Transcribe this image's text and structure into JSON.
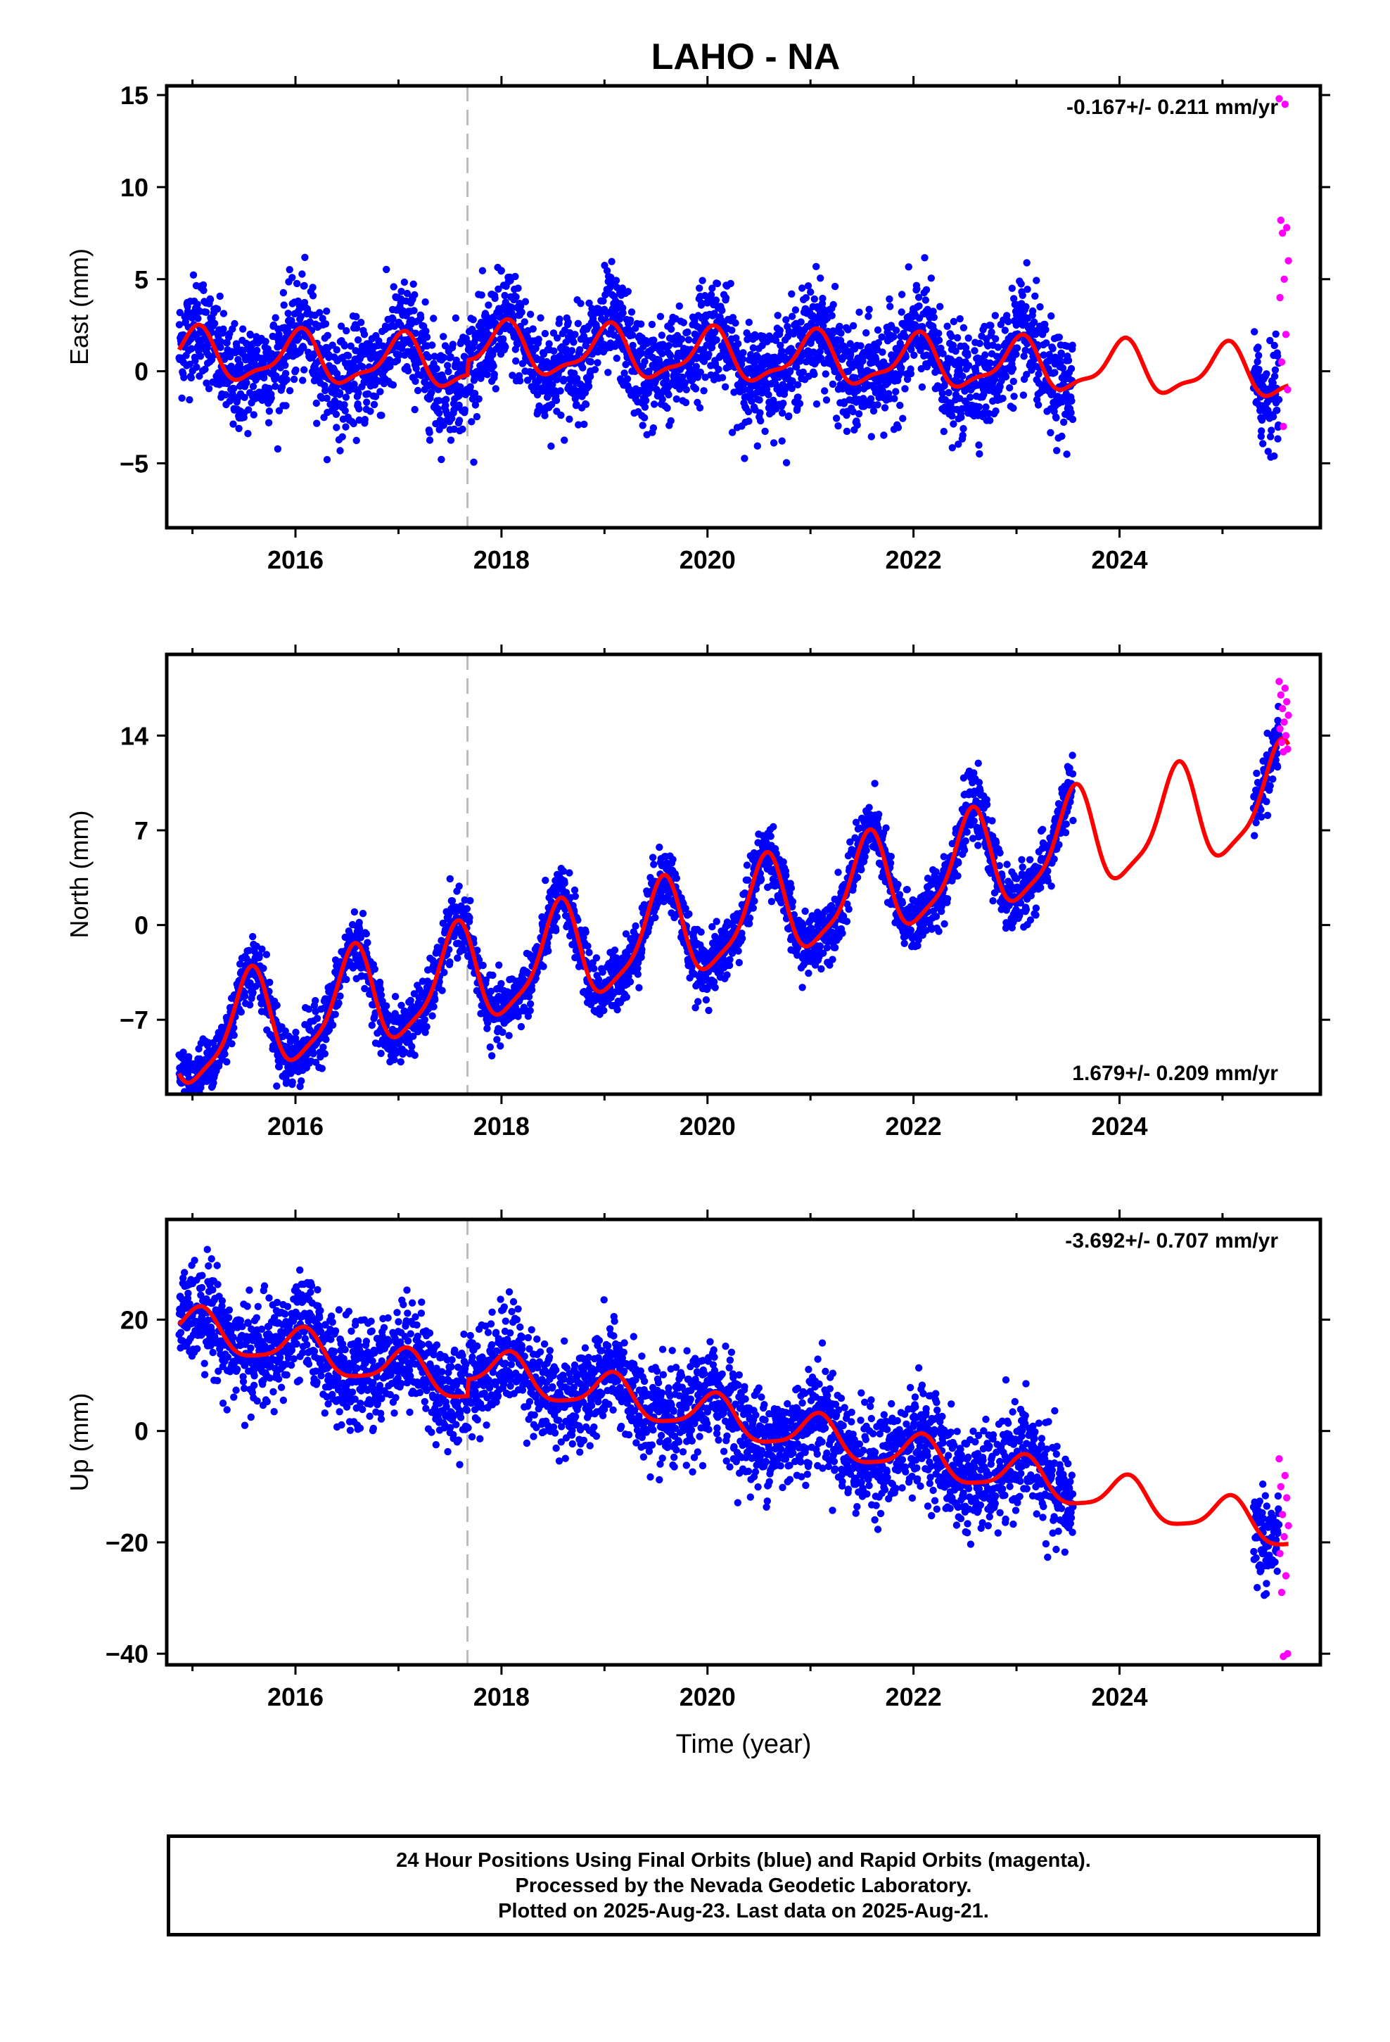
{
  "title": "LAHO - NA",
  "footer": {
    "line1": "24 Hour Positions Using Final Orbits (blue) and Rapid Orbits (magenta).",
    "line2": "Processed by the Nevada Geodetic Laboratory.",
    "line3": "Plotted on 2025-Aug-23. Last data on 2025-Aug-21."
  },
  "colors": {
    "final_orbits": "#0000ff",
    "rapid_orbits": "#ff00ff",
    "model_fit": "#ff0000",
    "event_line": "#bbbbbb"
  },
  "chart_data": [
    {
      "type": "scatter",
      "ylabel": "East (mm)",
      "xlabel": "",
      "xlim": [
        2014.75,
        2025.95
      ],
      "ylim": [
        -8.5,
        15.5
      ],
      "xticks": [
        2016,
        2018,
        2020,
        2022,
        2024
      ],
      "xtick_labels": [
        "2016",
        "2018",
        "2020",
        "2022",
        "2024"
      ],
      "yticks": [
        -5,
        0,
        5,
        10,
        15
      ],
      "ytick_labels": [
        "−5",
        "0",
        "5",
        "10",
        "15"
      ],
      "rate_label": "-0.167+/- 0.211 mm/yr",
      "rate_position": "top-right",
      "event_line_x": 2017.67,
      "data_gap": [
        2023.55,
        2025.3
      ],
      "model": {
        "trend_mm_per_yr": -0.167,
        "annual_amp": 1.3,
        "annual_phase": 1.4,
        "semiannual_amp": 0.45,
        "semiannual_phase": 0.5,
        "offset_at_event": 0.8,
        "mean_level": 0.0,
        "scatter_sd": 1.4
      },
      "rapid_values": [
        14.8,
        14.5,
        8.2,
        7.8,
        7.5,
        6.0,
        5.0,
        4.0,
        2.0,
        0.5,
        -1.0,
        -3.0
      ],
      "rapid_x_start": 2025.55,
      "rapid_x_end": 2025.64
    },
    {
      "type": "scatter",
      "ylabel": "North (mm)",
      "xlabel": "",
      "xlim": [
        2014.75,
        2025.95
      ],
      "ylim": [
        -12.5,
        20
      ],
      "xticks": [
        2016,
        2018,
        2020,
        2022,
        2024
      ],
      "xtick_labels": [
        "2016",
        "2018",
        "2020",
        "2022",
        "2024"
      ],
      "yticks": [
        -7,
        0,
        7,
        14
      ],
      "ytick_labels": [
        "−7",
        "0",
        "7",
        "14"
      ],
      "rate_label": "1.679+/- 0.209 mm/yr",
      "rate_position": "bottom-right",
      "event_line_x": 2017.67,
      "data_gap": [
        2023.55,
        2025.3
      ],
      "model": {
        "trend_mm_per_yr": 1.679,
        "annual_amp": 3.6,
        "annual_phase": -1.9,
        "semiannual_amp": 0.9,
        "semiannual_phase": 0.3,
        "offset_at_event": 0.0,
        "mean_level": 0.0,
        "scatter_sd": 1.1
      },
      "rapid_values": [
        18,
        17.5,
        17,
        16.5,
        16,
        15.5,
        15,
        14.5,
        14,
        13.5,
        13,
        12.8
      ],
      "rapid_x_start": 2025.55,
      "rapid_x_end": 2025.64
    },
    {
      "type": "scatter",
      "ylabel": "Up (mm)",
      "xlabel": "Time (year)",
      "xlim": [
        2014.75,
        2025.95
      ],
      "ylim": [
        -42,
        38
      ],
      "xticks": [
        2016,
        2018,
        2020,
        2022,
        2024
      ],
      "xtick_labels": [
        "2016",
        "2018",
        "2020",
        "2022",
        "2024"
      ],
      "yticks": [
        -40,
        -20,
        0,
        20
      ],
      "ytick_labels": [
        "−40",
        "−20",
        "0",
        "20"
      ],
      "rate_label": "-3.692+/- 0.707 mm/yr",
      "rate_position": "top-right",
      "event_line_x": 2017.67,
      "data_gap": [
        2023.55,
        2025.3
      ],
      "model": {
        "trend_mm_per_yr": -3.692,
        "annual_amp": 3.5,
        "annual_phase": 1.1,
        "semiannual_amp": 0.8,
        "semiannual_phase": 0.2,
        "offset_at_event": 3.0,
        "mean_level": 0.0,
        "scatter_sd": 4.5
      },
      "rapid_values": [
        -5,
        -8,
        -10,
        -12,
        -15,
        -17,
        -19,
        -22,
        -26,
        -29,
        -40,
        -40.5
      ],
      "rapid_x_start": 2025.55,
      "rapid_x_end": 2025.64
    }
  ]
}
